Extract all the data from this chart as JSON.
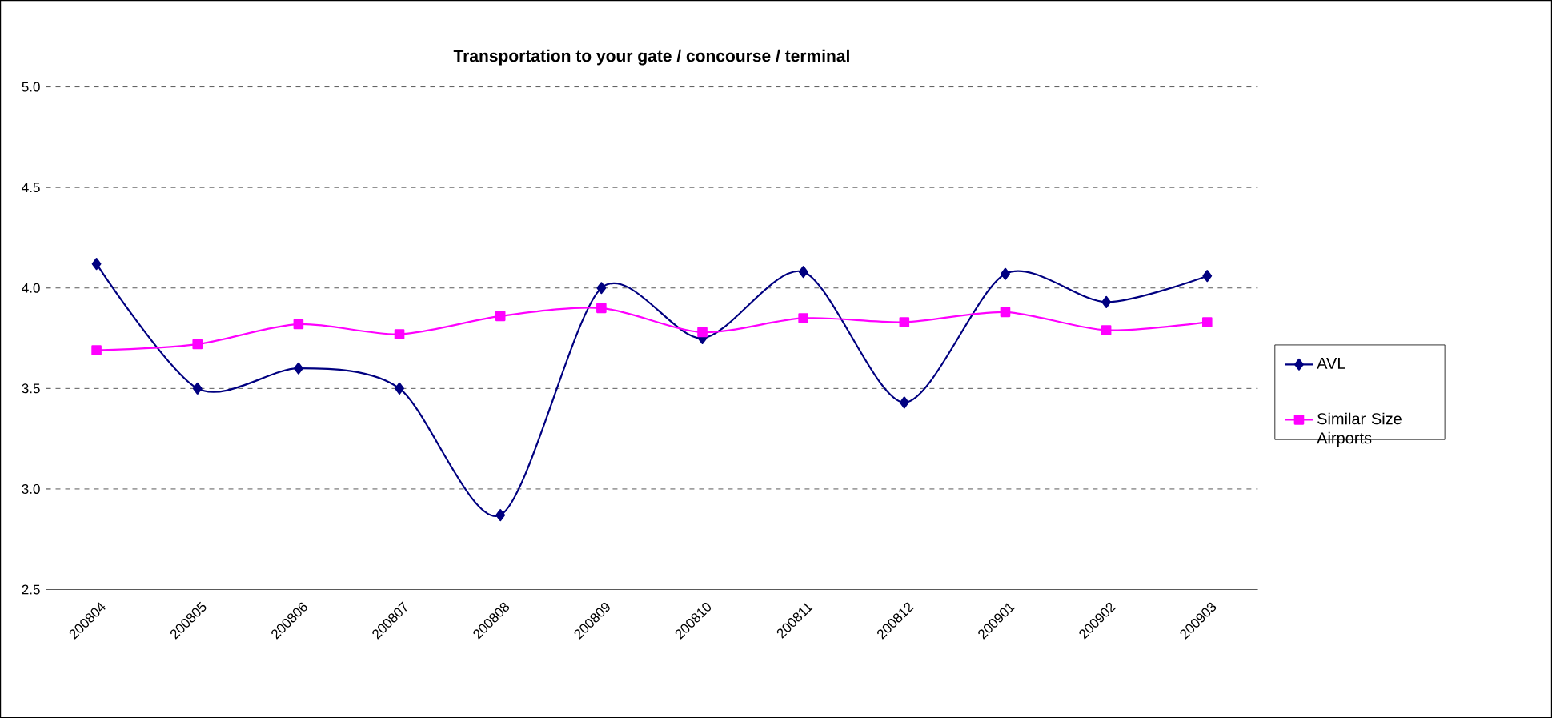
{
  "chart_data": {
    "type": "line",
    "title": "Transportation to your gate / concourse / terminal",
    "categories": [
      "200804",
      "200805",
      "200806",
      "200807",
      "200808",
      "200809",
      "200810",
      "200811",
      "200812",
      "200901",
      "200902",
      "200903"
    ],
    "series": [
      {
        "name": "AVL",
        "color": "#000080",
        "marker": "diamond",
        "values": [
          4.12,
          3.5,
          3.6,
          3.5,
          2.87,
          4.0,
          3.75,
          4.08,
          3.43,
          4.07,
          3.93,
          4.06
        ]
      },
      {
        "name": "Similar Size Airports",
        "color": "#ff00ff",
        "marker": "square",
        "values": [
          3.69,
          3.72,
          3.82,
          3.77,
          3.86,
          3.9,
          3.78,
          3.85,
          3.83,
          3.88,
          3.79,
          3.83
        ]
      }
    ],
    "ylim": [
      2.5,
      5.0
    ],
    "yticks": [
      {
        "value": 2.5,
        "label": "2.5"
      },
      {
        "value": 3.0,
        "label": "3.0"
      },
      {
        "value": 3.5,
        "label": "3.5"
      },
      {
        "value": 4.0,
        "label": "4.0"
      },
      {
        "value": 4.5,
        "label": "4.5"
      },
      {
        "value": 5.0,
        "label": "5.0"
      }
    ],
    "grid": "y",
    "legend": "right"
  }
}
